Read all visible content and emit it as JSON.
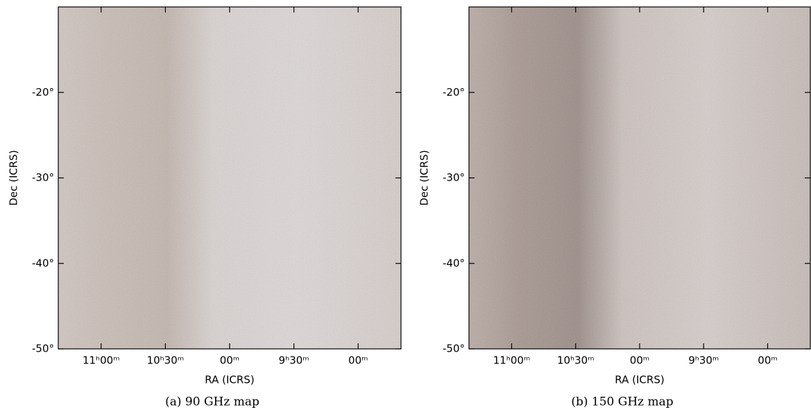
{
  "chart_data": [
    {
      "type": "image",
      "caption": "(a) 90 GHz map",
      "xlabel": "RA (ICRS)",
      "ylabel": "Dec (ICRS)",
      "xlim": [
        170,
        130
      ],
      "ylim": [
        -50,
        -10
      ],
      "xticks": [
        {
          "value": 165,
          "label": "11ʰ00ᵐ"
        },
        {
          "value": 157.5,
          "label": "10ʰ30ᵐ"
        },
        {
          "value": 150,
          "label": "00ᵐ"
        },
        {
          "value": 142.5,
          "label": "9ʰ30ᵐ"
        },
        {
          "value": 135,
          "label": "00ᵐ"
        }
      ],
      "yticks": [
        {
          "value": -20,
          "label": "-20°"
        },
        {
          "value": -30,
          "label": "-30°"
        },
        {
          "value": -40,
          "label": "-40°"
        },
        {
          "value": -50,
          "label": "-50°"
        }
      ]
    },
    {
      "type": "image",
      "caption": "(b) 150 GHz map",
      "xlabel": "RA (ICRS)",
      "ylabel": "Dec (ICRS)",
      "xlim": [
        170,
        130
      ],
      "ylim": [
        -50,
        -10
      ],
      "xticks": [
        {
          "value": 165,
          "label": "11ʰ00ᵐ"
        },
        {
          "value": 157.5,
          "label": "10ʰ30ᵐ"
        },
        {
          "value": 150,
          "label": "00ᵐ"
        },
        {
          "value": 142.5,
          "label": "9ʰ30ᵐ"
        },
        {
          "value": 135,
          "label": "00ᵐ"
        }
      ],
      "yticks": [
        {
          "value": -20,
          "label": "-20°"
        },
        {
          "value": -30,
          "label": "-30°"
        },
        {
          "value": -40,
          "label": "-40°"
        },
        {
          "value": -50,
          "label": "-50°"
        }
      ]
    }
  ]
}
